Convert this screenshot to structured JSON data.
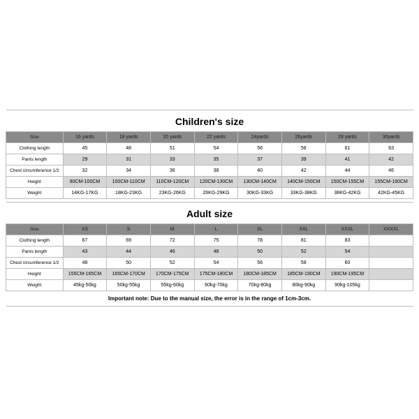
{
  "children": {
    "title": "Children's size",
    "headers": [
      "Size",
      "16 yards",
      "18 yards",
      "20 yards",
      "22 yards",
      "24yards",
      "26yards",
      "28 yards",
      "30yards"
    ],
    "rows": [
      {
        "label": "Clothing length",
        "cells": [
          "45",
          "48",
          "51",
          "54",
          "56",
          "58",
          "61",
          "63"
        ],
        "alt": false
      },
      {
        "label": "Pants length",
        "cells": [
          "29",
          "31",
          "33",
          "35",
          "37",
          "39",
          "41",
          "42"
        ],
        "alt": true
      },
      {
        "label": "Chest circumference 1/2",
        "cells": [
          "32",
          "34",
          "36",
          "38",
          "40",
          "42",
          "44",
          "46"
        ],
        "alt": false
      },
      {
        "label": "Height",
        "cells": [
          "90CM-100CM",
          "100CM-110CM",
          "110CM-120CM",
          "120CM-130CM",
          "130CM-140CM",
          "140CM-150CM",
          "150CM-155CM",
          "155CM-160CM"
        ],
        "alt": true
      },
      {
        "label": "Weight",
        "cells": [
          "14KG-17KG",
          "18KG-23KG",
          "23KG-26KG",
          "26KG-29KG",
          "30KG-33KG",
          "33KG-38KG",
          "38KG-42KG",
          "42KG-45KG"
        ],
        "alt": false
      }
    ]
  },
  "adult": {
    "title": "Adult size",
    "headers": [
      "Size",
      "XS",
      "S",
      "M",
      "L",
      "XL",
      "XXL",
      "XXXL",
      "XXXXL"
    ],
    "rows": [
      {
        "label": "Clothing length",
        "cells": [
          "67",
          "69",
          "72",
          "75",
          "78",
          "81",
          "83",
          ""
        ],
        "alt": false
      },
      {
        "label": "Pants length",
        "cells": [
          "43",
          "44",
          "46",
          "48",
          "50",
          "52",
          "54",
          ""
        ],
        "alt": true
      },
      {
        "label": "Chest circumference 1/2",
        "cells": [
          "48",
          "50",
          "52",
          "54",
          "56",
          "58",
          "60",
          ""
        ],
        "alt": false
      },
      {
        "label": "Height",
        "cells": [
          "155CM-165CM",
          "165CM-170CM",
          "170CM-175CM",
          "175CM-180CM",
          "180CM-185CM",
          "185CM-190CM",
          "190CM-195CM",
          ""
        ],
        "alt": true
      },
      {
        "label": "Weight",
        "cells": [
          "45kg-50kg",
          "50kg-55kg",
          "55kg-60kg",
          "60kg-70kg",
          "70kg-80kg",
          "80kg-90kg",
          "90kg-105kg",
          ""
        ],
        "alt": false
      }
    ]
  },
  "note": "Important note: Due to the manual size, the error is in the range of 1cm-3cm.",
  "style": {
    "header_bg": "#8a8a8a",
    "alt_bg": "#d6d6d6",
    "border": "#bcbcbc",
    "page_bg": "#ffffff",
    "title_fontsize": 14,
    "cell_fontsize": 7,
    "note_fontsize": 8
  }
}
